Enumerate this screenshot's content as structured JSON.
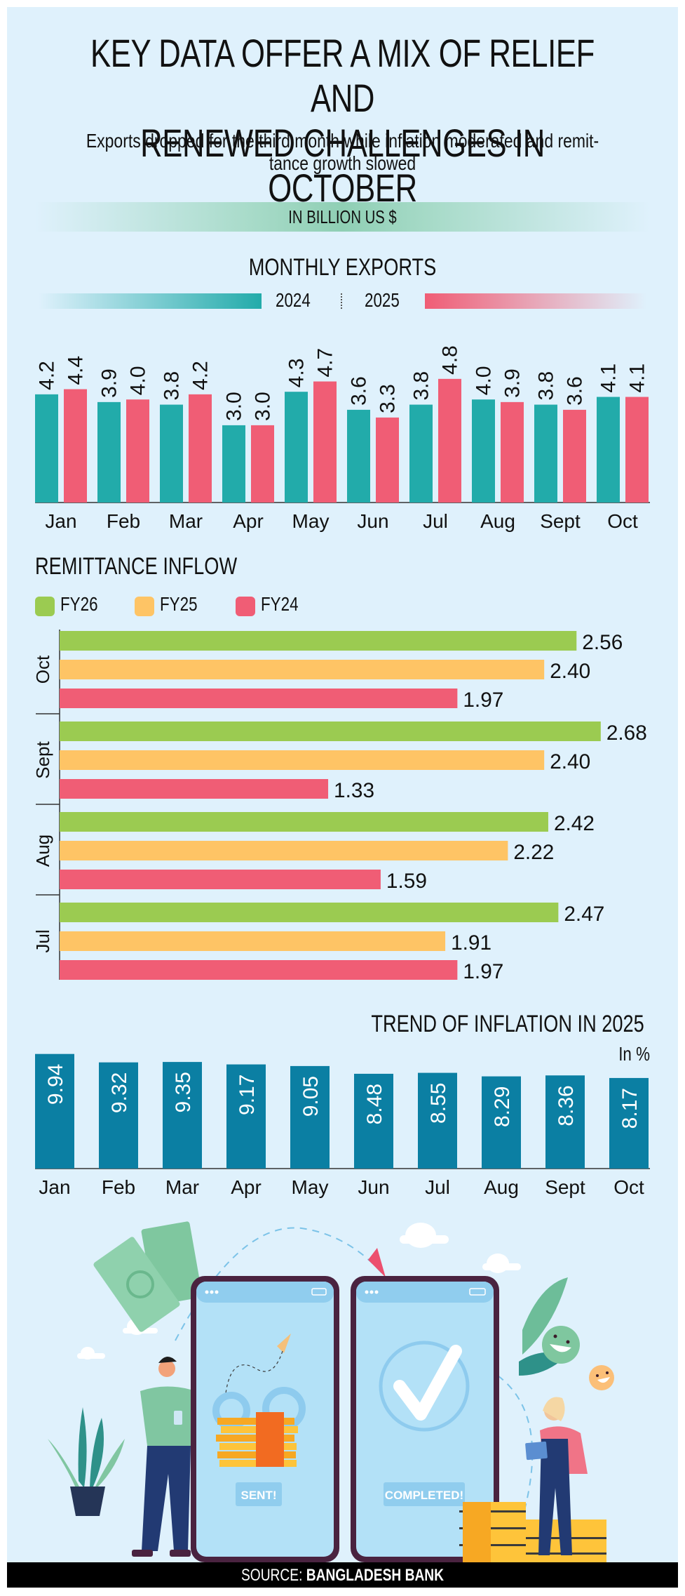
{
  "header": {
    "title_line1": "KEY DATA OFFER A MIX OF RELIEF AND",
    "title_line2": "RENEWED CHALLENGES IN OCTOBER",
    "subtitle_line1": "Exports dropped for the third month while inflation moderated and remit-",
    "subtitle_line2": "tance growth slowed",
    "unit_band": "IN BILLION US $"
  },
  "colors": {
    "background": "#dff1fc",
    "exports_2024": "#22abaa",
    "exports_2025": "#f05d75",
    "fy26": "#9bcb51",
    "fy25": "#fec465",
    "fy24": "#f05d75",
    "inflation": "#0b7fa3"
  },
  "chart_data": [
    {
      "type": "bar",
      "title": "MONTHLY EXPORTS",
      "unit": "Billion US $",
      "categories": [
        "Jan",
        "Feb",
        "Mar",
        "Apr",
        "May",
        "Jun",
        "Jul",
        "Aug",
        "Sept",
        "Oct"
      ],
      "series": [
        {
          "name": "2024",
          "values": [
            4.2,
            3.9,
            3.8,
            3.0,
            4.3,
            3.6,
            3.8,
            4.0,
            3.8,
            4.1
          ]
        },
        {
          "name": "2025",
          "values": [
            4.4,
            4.0,
            4.2,
            3.0,
            4.7,
            3.3,
            4.8,
            3.9,
            3.6,
            4.1
          ]
        }
      ],
      "legend": [
        "2024",
        "2025"
      ],
      "legend_position": "top",
      "ylim": [
        0,
        5
      ],
      "grid": false,
      "data_labels": true
    },
    {
      "type": "bar",
      "orientation": "horizontal",
      "title": "REMITTANCE INFLOW",
      "unit": "Billion US $",
      "categories": [
        "Oct",
        "Sept",
        "Aug",
        "Jul"
      ],
      "series": [
        {
          "name": "FY26",
          "values": [
            2.56,
            2.68,
            2.42,
            2.47
          ]
        },
        {
          "name": "FY25",
          "values": [
            2.4,
            2.4,
            2.22,
            1.91
          ]
        },
        {
          "name": "FY24",
          "values": [
            1.97,
            1.33,
            1.59,
            1.97
          ]
        }
      ],
      "legend": [
        "FY26",
        "FY25",
        "FY24"
      ],
      "legend_position": "top-left",
      "xlim": [
        0,
        3
      ],
      "grid": false,
      "data_labels": true
    },
    {
      "type": "bar",
      "title": "TREND OF INFLATION IN 2025",
      "ylabel": "In %",
      "categories": [
        "Jan",
        "Feb",
        "Mar",
        "Apr",
        "May",
        "Jun",
        "Jul",
        "Aug",
        "Sept",
        "Oct"
      ],
      "values": [
        9.94,
        9.32,
        9.35,
        9.17,
        9.05,
        8.48,
        8.55,
        8.29,
        8.36,
        8.17
      ],
      "ylim": [
        1.5,
        10
      ],
      "grid": false,
      "data_labels": true
    }
  ],
  "illustration": {
    "phone_left_label": "SENT!",
    "phone_right_label": "COMPLETED!"
  },
  "footer": {
    "source_prefix": "SOURCE:",
    "source_name": "BANGLADESH BANK"
  }
}
